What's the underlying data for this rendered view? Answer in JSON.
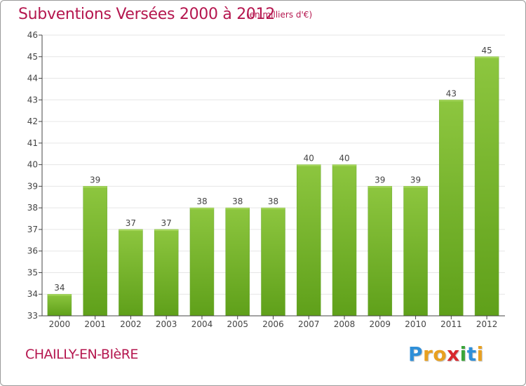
{
  "chart_data": {
    "type": "bar",
    "title": "Subventions Versées 2000 à 2012",
    "subtitle": "(en milliers d'€)",
    "categories": [
      "2000",
      "2001",
      "2002",
      "2003",
      "2004",
      "2005",
      "2006",
      "2007",
      "2008",
      "2009",
      "2010",
      "2011",
      "2012"
    ],
    "values": [
      34,
      39,
      37,
      37,
      38,
      38,
      38,
      40,
      40,
      39,
      39,
      43,
      45
    ],
    "ylim": [
      33,
      46
    ],
    "yticks": [
      33,
      34,
      35,
      36,
      37,
      38,
      39,
      40,
      41,
      42,
      43,
      44,
      45,
      46
    ],
    "grid": true,
    "bar_color_top": "#8dc63f",
    "bar_color_bottom": "#5fa01a"
  },
  "footer": {
    "town": "CHAILLY-EN-BIèRE"
  },
  "brand": {
    "letters": [
      "P",
      "r",
      "o",
      "x",
      "i",
      "t",
      "i"
    ],
    "colors": [
      "#2f8fd8",
      "#e8a020",
      "#e8a020",
      "#d8282e",
      "#3aa53a",
      "#2f8fd8",
      "#e8a020"
    ]
  },
  "colors": {
    "title": "#b5174f",
    "axis": "#444444",
    "grid": "#e6e6e6"
  }
}
